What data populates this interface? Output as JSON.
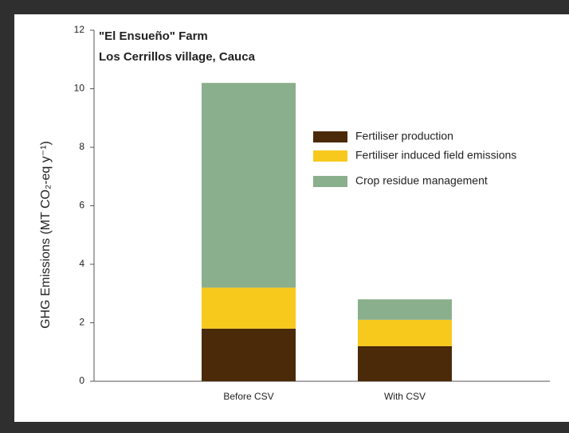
{
  "chart_data": {
    "type": "stacked_bar",
    "title": "\"El Ensueño\" Farm",
    "subtitle": "Los Cerrillos village, Cauca",
    "y_label": "GHG Emissions (MT CO₂-eq y⁻¹)",
    "categories": [
      "Before CSV",
      "With CSV"
    ],
    "series": [
      {
        "name": "Fertiliser production",
        "color": "#4a2a08",
        "values": [
          1.8,
          1.2
        ]
      },
      {
        "name": "Fertiliser induced field emissions",
        "color": "#f7c91c",
        "values": [
          1.4,
          0.9
        ]
      },
      {
        "name": "Crop residue management",
        "color": "#8aaf8c",
        "values": [
          7.0,
          0.7
        ]
      }
    ],
    "ylim": [
      0,
      12
    ],
    "yticks": [
      0,
      2,
      4,
      6,
      8,
      10,
      12
    ]
  }
}
